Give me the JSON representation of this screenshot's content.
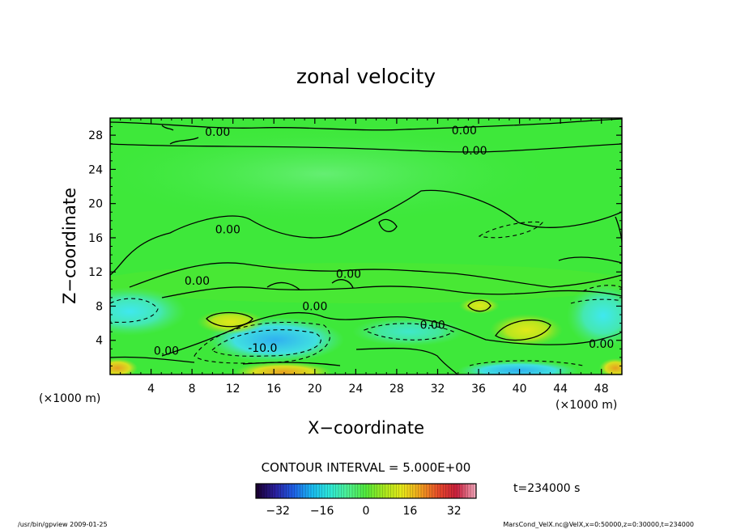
{
  "chart_data": {
    "type": "heatmap",
    "title": "zonal velocity",
    "xlabel": "X−coordinate",
    "ylabel": "Z−coordinate",
    "x_unit_left": "(×1000 m)",
    "x_unit_right": "(×1000 m)",
    "xlim": [
      0,
      50
    ],
    "ylim": [
      0,
      30
    ],
    "x_ticks": [
      4,
      8,
      12,
      16,
      20,
      24,
      28,
      32,
      36,
      40,
      44,
      48
    ],
    "y_ticks": [
      4,
      8,
      12,
      16,
      20,
      24,
      28
    ],
    "contour_interval_text": "CONTOUR INTERVAL = 5.000E+00",
    "contour_labels": [
      {
        "text": "0.00",
        "x": 10.5,
        "y": 28.4
      },
      {
        "text": "0.00",
        "x": 34.6,
        "y": 28.6
      },
      {
        "text": "0.00",
        "x": 35.6,
        "y": 26.2
      },
      {
        "text": "0.00",
        "x": 11.5,
        "y": 17.0
      },
      {
        "text": "0.00",
        "x": 8.5,
        "y": 11.0
      },
      {
        "text": "0.00",
        "x": 23.3,
        "y": 11.8
      },
      {
        "text": "0.00",
        "x": 20.0,
        "y": 8.0
      },
      {
        "text": "0.00",
        "x": 31.5,
        "y": 5.8
      },
      {
        "text": "0.00",
        "x": 5.5,
        "y": 2.8
      },
      {
        "text": "0.00",
        "x": 48.0,
        "y": 3.6
      },
      {
        "text": "-10.0",
        "x": 14.9,
        "y": 3.1
      }
    ],
    "colorbar": {
      "min": -40,
      "max": 40,
      "ticks": [
        -32,
        -16,
        0,
        16,
        32
      ],
      "colors": [
        "#1a0033",
        "#2a1f9e",
        "#1e5fe6",
        "#19b8f0",
        "#2ee8d8",
        "#4df092",
        "#52e83a",
        "#a8e81e",
        "#e8e81a",
        "#f0a01e",
        "#e64a2a",
        "#c81e3c",
        "#f0a0b4"
      ]
    },
    "time_label": "t=234000 s",
    "footer_left": "/usr/bin/gpview   2009-01-25",
    "footer_right": "MarsCond_VelX.nc@VelX,x=0:50000,z=0:30000,t=234000"
  }
}
